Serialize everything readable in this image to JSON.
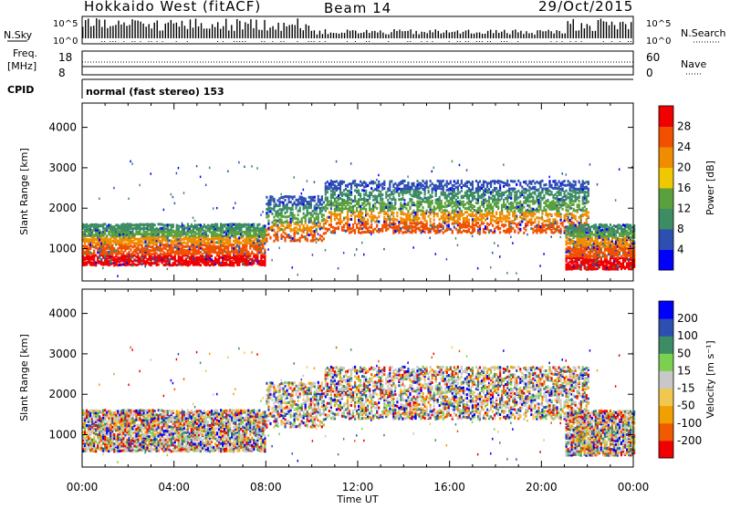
{
  "header": {
    "title": "Hokkaido West (fitACF)",
    "beam": "Beam 14",
    "date": "29/Oct/2015"
  },
  "noise_panel": {
    "left_label": "N.Sky",
    "right_label": "N.Search",
    "left_ticks": [
      "10^5",
      "10^0"
    ],
    "right_ticks": [
      "10^5",
      "10^0"
    ]
  },
  "freq_panel": {
    "left_label_1": "Freq.",
    "left_label_2": "[MHz]",
    "left_ticks": [
      "18",
      "8"
    ],
    "right_label": "Nave",
    "right_ticks": [
      "60",
      "0"
    ]
  },
  "cpid_panel": {
    "label": "CPID",
    "mode_text": "normal (fast stereo) 153"
  },
  "colors": {
    "power": [
      "#0000ff",
      "#2e4fb2",
      "#3c8c64",
      "#5aa03c",
      "#f0c800",
      "#f08c00",
      "#f05000",
      "#f00000"
    ],
    "velocity": [
      "#f00000",
      "#f05a00",
      "#f0a000",
      "#f0c850",
      "#c8c8c8",
      "#7cd050",
      "#3c8c64",
      "#2e4fb2",
      "#0000ff"
    ]
  },
  "chart_data": [
    {
      "type": "heatmap",
      "name": "power",
      "xlabel": "Time UT",
      "ylabel": "Slant Range [km]",
      "x_ticks": [
        "00:00",
        "04:00",
        "08:00",
        "12:00",
        "16:00",
        "20:00",
        "00:00"
      ],
      "ylim": [
        200,
        4600
      ],
      "y_ticks": [
        1000,
        2000,
        3000,
        4000
      ],
      "colorbar": {
        "label": "Power [dB]",
        "ticks": [
          4,
          8,
          12,
          16,
          20,
          24,
          28
        ],
        "range": [
          0,
          32
        ]
      },
      "bands": [
        {
          "t0": 0.0,
          "t1": 8.0,
          "r0": 600,
          "r1": 1600,
          "level": "high"
        },
        {
          "t0": 8.0,
          "t1": 10.5,
          "r0": 1200,
          "r1": 2300,
          "level": "mid"
        },
        {
          "t0": 10.5,
          "t1": 22.0,
          "r0": 1400,
          "r1": 2700,
          "level": "mid"
        },
        {
          "t0": 21.0,
          "t1": 24.0,
          "r0": 500,
          "r1": 1600,
          "level": "high"
        }
      ]
    },
    {
      "type": "heatmap",
      "name": "velocity",
      "xlabel": "Time UT",
      "ylabel": "Slant Range [km]",
      "x_ticks": [
        "00:00",
        "04:00",
        "08:00",
        "12:00",
        "16:00",
        "20:00",
        "00:00"
      ],
      "ylim": [
        200,
        4600
      ],
      "y_ticks": [
        1000,
        2000,
        3000,
        4000
      ],
      "colorbar": {
        "label": "Velocity [m s⁻¹]",
        "ticks": [
          "200",
          "100",
          "50",
          "15",
          "-15",
          "-50",
          "-100",
          "-200"
        ]
      }
    }
  ]
}
